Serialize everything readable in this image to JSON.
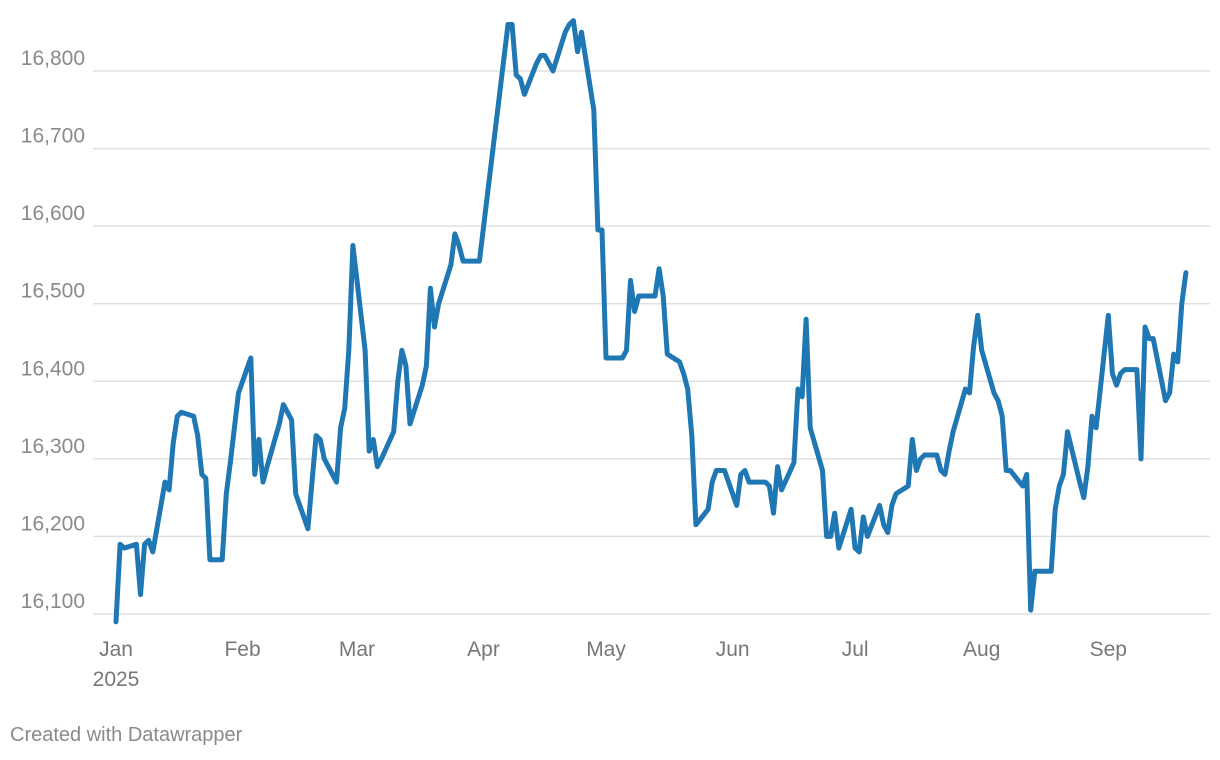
{
  "footer": {
    "credit": "Created with Datawrapper"
  },
  "chart_data": {
    "type": "line",
    "title": "",
    "xlabel": "",
    "ylabel": "",
    "year_label": "2025",
    "ylim": [
      16100,
      16900
    ],
    "y_ticks": [
      16100,
      16200,
      16300,
      16400,
      16500,
      16600,
      16700,
      16800
    ],
    "y_tick_labels": [
      "16,100",
      "16,200",
      "16,300",
      "16,400",
      "16,500",
      "16,600",
      "16,700",
      "16,800"
    ],
    "x_range": [
      "2025-01-01",
      "2025-09-21"
    ],
    "x_ticks": [
      "2025-01-01",
      "2025-02-01",
      "2025-03-01",
      "2025-04-01",
      "2025-05-01",
      "2025-06-01",
      "2025-07-01",
      "2025-08-01",
      "2025-09-01"
    ],
    "x_tick_labels": [
      "Jan",
      "Feb",
      "Mar",
      "Apr",
      "May",
      "Jun",
      "Jul",
      "Aug",
      "Sep"
    ],
    "grid": true,
    "legend": "none",
    "line_color": "#1f77b4",
    "series": [
      {
        "x": [
          "2025-01-01",
          "2025-01-02",
          "2025-01-03",
          "2025-01-06",
          "2025-01-07",
          "2025-01-08",
          "2025-01-09",
          "2025-01-10",
          "2025-01-13",
          "2025-01-14",
          "2025-01-15",
          "2025-01-16",
          "2025-01-17",
          "2025-01-20",
          "2025-01-21",
          "2025-01-22",
          "2025-01-23",
          "2025-01-24",
          "2025-01-27",
          "2025-01-28",
          "2025-01-29",
          "2025-01-30",
          "2025-01-31",
          "2025-02-03",
          "2025-02-04",
          "2025-02-05",
          "2025-02-06",
          "2025-02-07",
          "2025-02-10",
          "2025-02-11",
          "2025-02-12",
          "2025-02-13",
          "2025-02-14",
          "2025-02-17",
          "2025-02-18",
          "2025-02-19",
          "2025-02-20",
          "2025-02-21",
          "2025-02-24",
          "2025-02-25",
          "2025-02-26",
          "2025-02-27",
          "2025-02-28",
          "2025-03-03",
          "2025-03-04",
          "2025-03-05",
          "2025-03-06",
          "2025-03-07",
          "2025-03-10",
          "2025-03-11",
          "2025-03-12",
          "2025-03-13",
          "2025-03-14",
          "2025-03-17",
          "2025-03-18",
          "2025-03-19",
          "2025-03-20",
          "2025-03-21",
          "2025-03-24",
          "2025-03-25",
          "2025-03-26",
          "2025-03-27",
          "2025-03-28",
          "2025-03-31",
          "2025-04-07",
          "2025-04-08",
          "2025-04-09",
          "2025-04-10",
          "2025-04-11",
          "2025-04-14",
          "2025-04-15",
          "2025-04-16",
          "2025-04-17",
          "2025-04-18",
          "2025-04-21",
          "2025-04-22",
          "2025-04-23",
          "2025-04-24",
          "2025-04-25",
          "2025-04-28",
          "2025-04-29",
          "2025-04-30",
          "2025-05-01",
          "2025-05-02",
          "2025-05-05",
          "2025-05-06",
          "2025-05-07",
          "2025-05-08",
          "2025-05-09",
          "2025-05-12",
          "2025-05-13",
          "2025-05-14",
          "2025-05-15",
          "2025-05-16",
          "2025-05-19",
          "2025-05-20",
          "2025-05-21",
          "2025-05-22",
          "2025-05-23",
          "2025-05-26",
          "2025-05-27",
          "2025-05-28",
          "2025-05-29",
          "2025-05-30",
          "2025-06-02",
          "2025-06-03",
          "2025-06-04",
          "2025-06-05",
          "2025-06-06",
          "2025-06-09",
          "2025-06-10",
          "2025-06-11",
          "2025-06-12",
          "2025-06-13",
          "2025-06-16",
          "2025-06-17",
          "2025-06-18",
          "2025-06-19",
          "2025-06-20",
          "2025-06-23",
          "2025-06-24",
          "2025-06-25",
          "2025-06-26",
          "2025-06-27",
          "2025-06-30",
          "2025-07-01",
          "2025-07-02",
          "2025-07-03",
          "2025-07-04",
          "2025-07-07",
          "2025-07-08",
          "2025-07-09",
          "2025-07-10",
          "2025-07-11",
          "2025-07-14",
          "2025-07-15",
          "2025-07-16",
          "2025-07-17",
          "2025-07-18",
          "2025-07-21",
          "2025-07-22",
          "2025-07-23",
          "2025-07-24",
          "2025-07-25",
          "2025-07-28",
          "2025-07-29",
          "2025-07-30",
          "2025-07-31",
          "2025-08-01",
          "2025-08-04",
          "2025-08-05",
          "2025-08-06",
          "2025-08-07",
          "2025-08-08",
          "2025-08-11",
          "2025-08-12",
          "2025-08-13",
          "2025-08-14",
          "2025-08-15",
          "2025-08-18",
          "2025-08-19",
          "2025-08-20",
          "2025-08-21",
          "2025-08-22",
          "2025-08-25",
          "2025-08-26",
          "2025-08-27",
          "2025-08-28",
          "2025-08-29",
          "2025-09-01",
          "2025-09-02",
          "2025-09-03",
          "2025-09-04",
          "2025-09-05",
          "2025-09-08",
          "2025-09-09",
          "2025-09-10",
          "2025-09-11",
          "2025-09-12",
          "2025-09-15",
          "2025-09-16",
          "2025-09-17",
          "2025-09-18",
          "2025-09-19",
          "2025-09-20"
        ],
        "values": [
          16090,
          16190,
          16185,
          16190,
          16125,
          16190,
          16195,
          16180,
          16270,
          16260,
          16320,
          16355,
          16360,
          16355,
          16330,
          16280,
          16275,
          16170,
          16170,
          16255,
          16295,
          16340,
          16385,
          16430,
          16280,
          16325,
          16270,
          16290,
          16345,
          16370,
          16360,
          16350,
          16255,
          16210,
          16270,
          16330,
          16325,
          16300,
          16270,
          16340,
          16365,
          16440,
          16575,
          16440,
          16310,
          16325,
          16290,
          16300,
          16335,
          16400,
          16440,
          16420,
          16345,
          16395,
          16420,
          16520,
          16470,
          16500,
          16550,
          16590,
          16575,
          16555,
          16555,
          16555,
          16860,
          16860,
          16795,
          16790,
          16770,
          16810,
          16820,
          16820,
          16810,
          16800,
          16850,
          16860,
          16865,
          16825,
          16850,
          16750,
          16595,
          16595,
          16430,
          16430,
          16430,
          16440,
          16530,
          16490,
          16510,
          16510,
          16510,
          16545,
          16510,
          16435,
          16425,
          16410,
          16390,
          16330,
          16215,
          16235,
          16270,
          16285,
          16285,
          16285,
          16240,
          16280,
          16285,
          16270,
          16270,
          16270,
          16265,
          16230,
          16290,
          16260,
          16295,
          16390,
          16380,
          16480,
          16340,
          16285,
          16200,
          16200,
          16230,
          16185,
          16235,
          16185,
          16180,
          16225,
          16200,
          16240,
          16215,
          16205,
          16240,
          16255,
          16265,
          16325,
          16285,
          16300,
          16305,
          16305,
          16285,
          16280,
          16310,
          16335,
          16390,
          16385,
          16445,
          16485,
          16440,
          16385,
          16375,
          16355,
          16285,
          16285,
          16265,
          16280,
          16105,
          16155,
          16155,
          16155,
          16235,
          16265,
          16280,
          16335,
          16270,
          16250,
          16290,
          16355,
          16340,
          16485,
          16410,
          16395,
          16410,
          16415,
          16415,
          16300,
          16470,
          16455,
          16455,
          16375,
          16385,
          16435,
          16425,
          16500,
          16540
        ]
      }
    ]
  }
}
